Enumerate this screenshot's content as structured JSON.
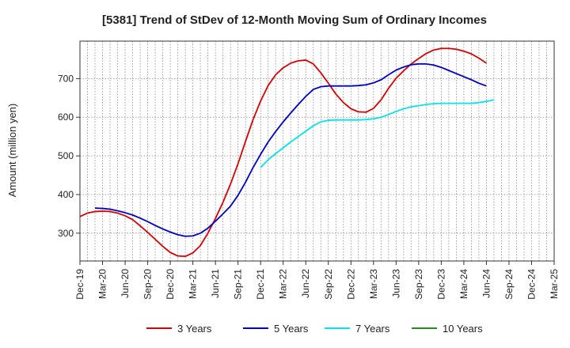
{
  "chart_data": {
    "type": "line",
    "title": "[5381]  Trend of StDev of 12-Month Moving Sum of Ordinary Incomes",
    "xlabel": "",
    "ylabel": "Amount (million yen)",
    "ylim": [
      228,
      797
    ],
    "yticks": [
      300,
      400,
      500,
      600,
      700
    ],
    "x_tick_labels": [
      "Dec-19",
      "Mar-20",
      "Jun-20",
      "Sep-20",
      "Dec-20",
      "Mar-21",
      "Jun-21",
      "Sep-21",
      "Dec-21",
      "Mar-22",
      "Jun-22",
      "Sep-22",
      "Dec-22",
      "Mar-23",
      "Jun-23",
      "Sep-23",
      "Dec-23",
      "Mar-24",
      "Jun-24",
      "Sep-24",
      "Dec-24",
      "Mar-25"
    ],
    "series": [
      {
        "name": "3 Years",
        "color": "#dd0000",
        "start_index": 0,
        "values": [
          343,
          352,
          356,
          357,
          356,
          352,
          345,
          335,
          319,
          302,
          284,
          266,
          250,
          241,
          240,
          249,
          268,
          300,
          338,
          380,
          427,
          480,
          538,
          594,
          642,
          682,
          710,
          728,
          740,
          746,
          748,
          738,
          715,
          688,
          660,
          638,
          622,
          614,
          613,
          623,
          645,
          675,
          701,
          720,
          738,
          752,
          765,
          774,
          778,
          778,
          776,
          771,
          764,
          753,
          740
        ]
      },
      {
        "name": "5 Years",
        "color": "#0000cc",
        "start_index": 2,
        "values": [
          365,
          364,
          362,
          358,
          353,
          347,
          339,
          330,
          320,
          311,
          303,
          296,
          292,
          293,
          300,
          313,
          331,
          350,
          370,
          398,
          432,
          470,
          504,
          536,
          563,
          588,
          611,
          633,
          654,
          672,
          679,
          681,
          681,
          681,
          681,
          682,
          684,
          689,
          697,
          710,
          722,
          730,
          736,
          738,
          738,
          735,
          729,
          721,
          713,
          705,
          697,
          688,
          681
        ]
      },
      {
        "name": "7 Years",
        "color": "#00e5ee",
        "start_index": 24,
        "values": [
          470,
          490,
          506,
          521,
          536,
          550,
          564,
          578,
          588,
          592,
          593,
          593,
          593,
          593,
          594,
          596,
          600,
          607,
          615,
          622,
          627,
          630,
          633,
          635,
          636,
          636,
          636,
          636,
          636,
          638,
          641,
          645
        ]
      },
      {
        "name": "10 Years",
        "color": "#228b22",
        "start_index": 0,
        "values": []
      }
    ],
    "legend_position": "bottom",
    "grid": true
  }
}
